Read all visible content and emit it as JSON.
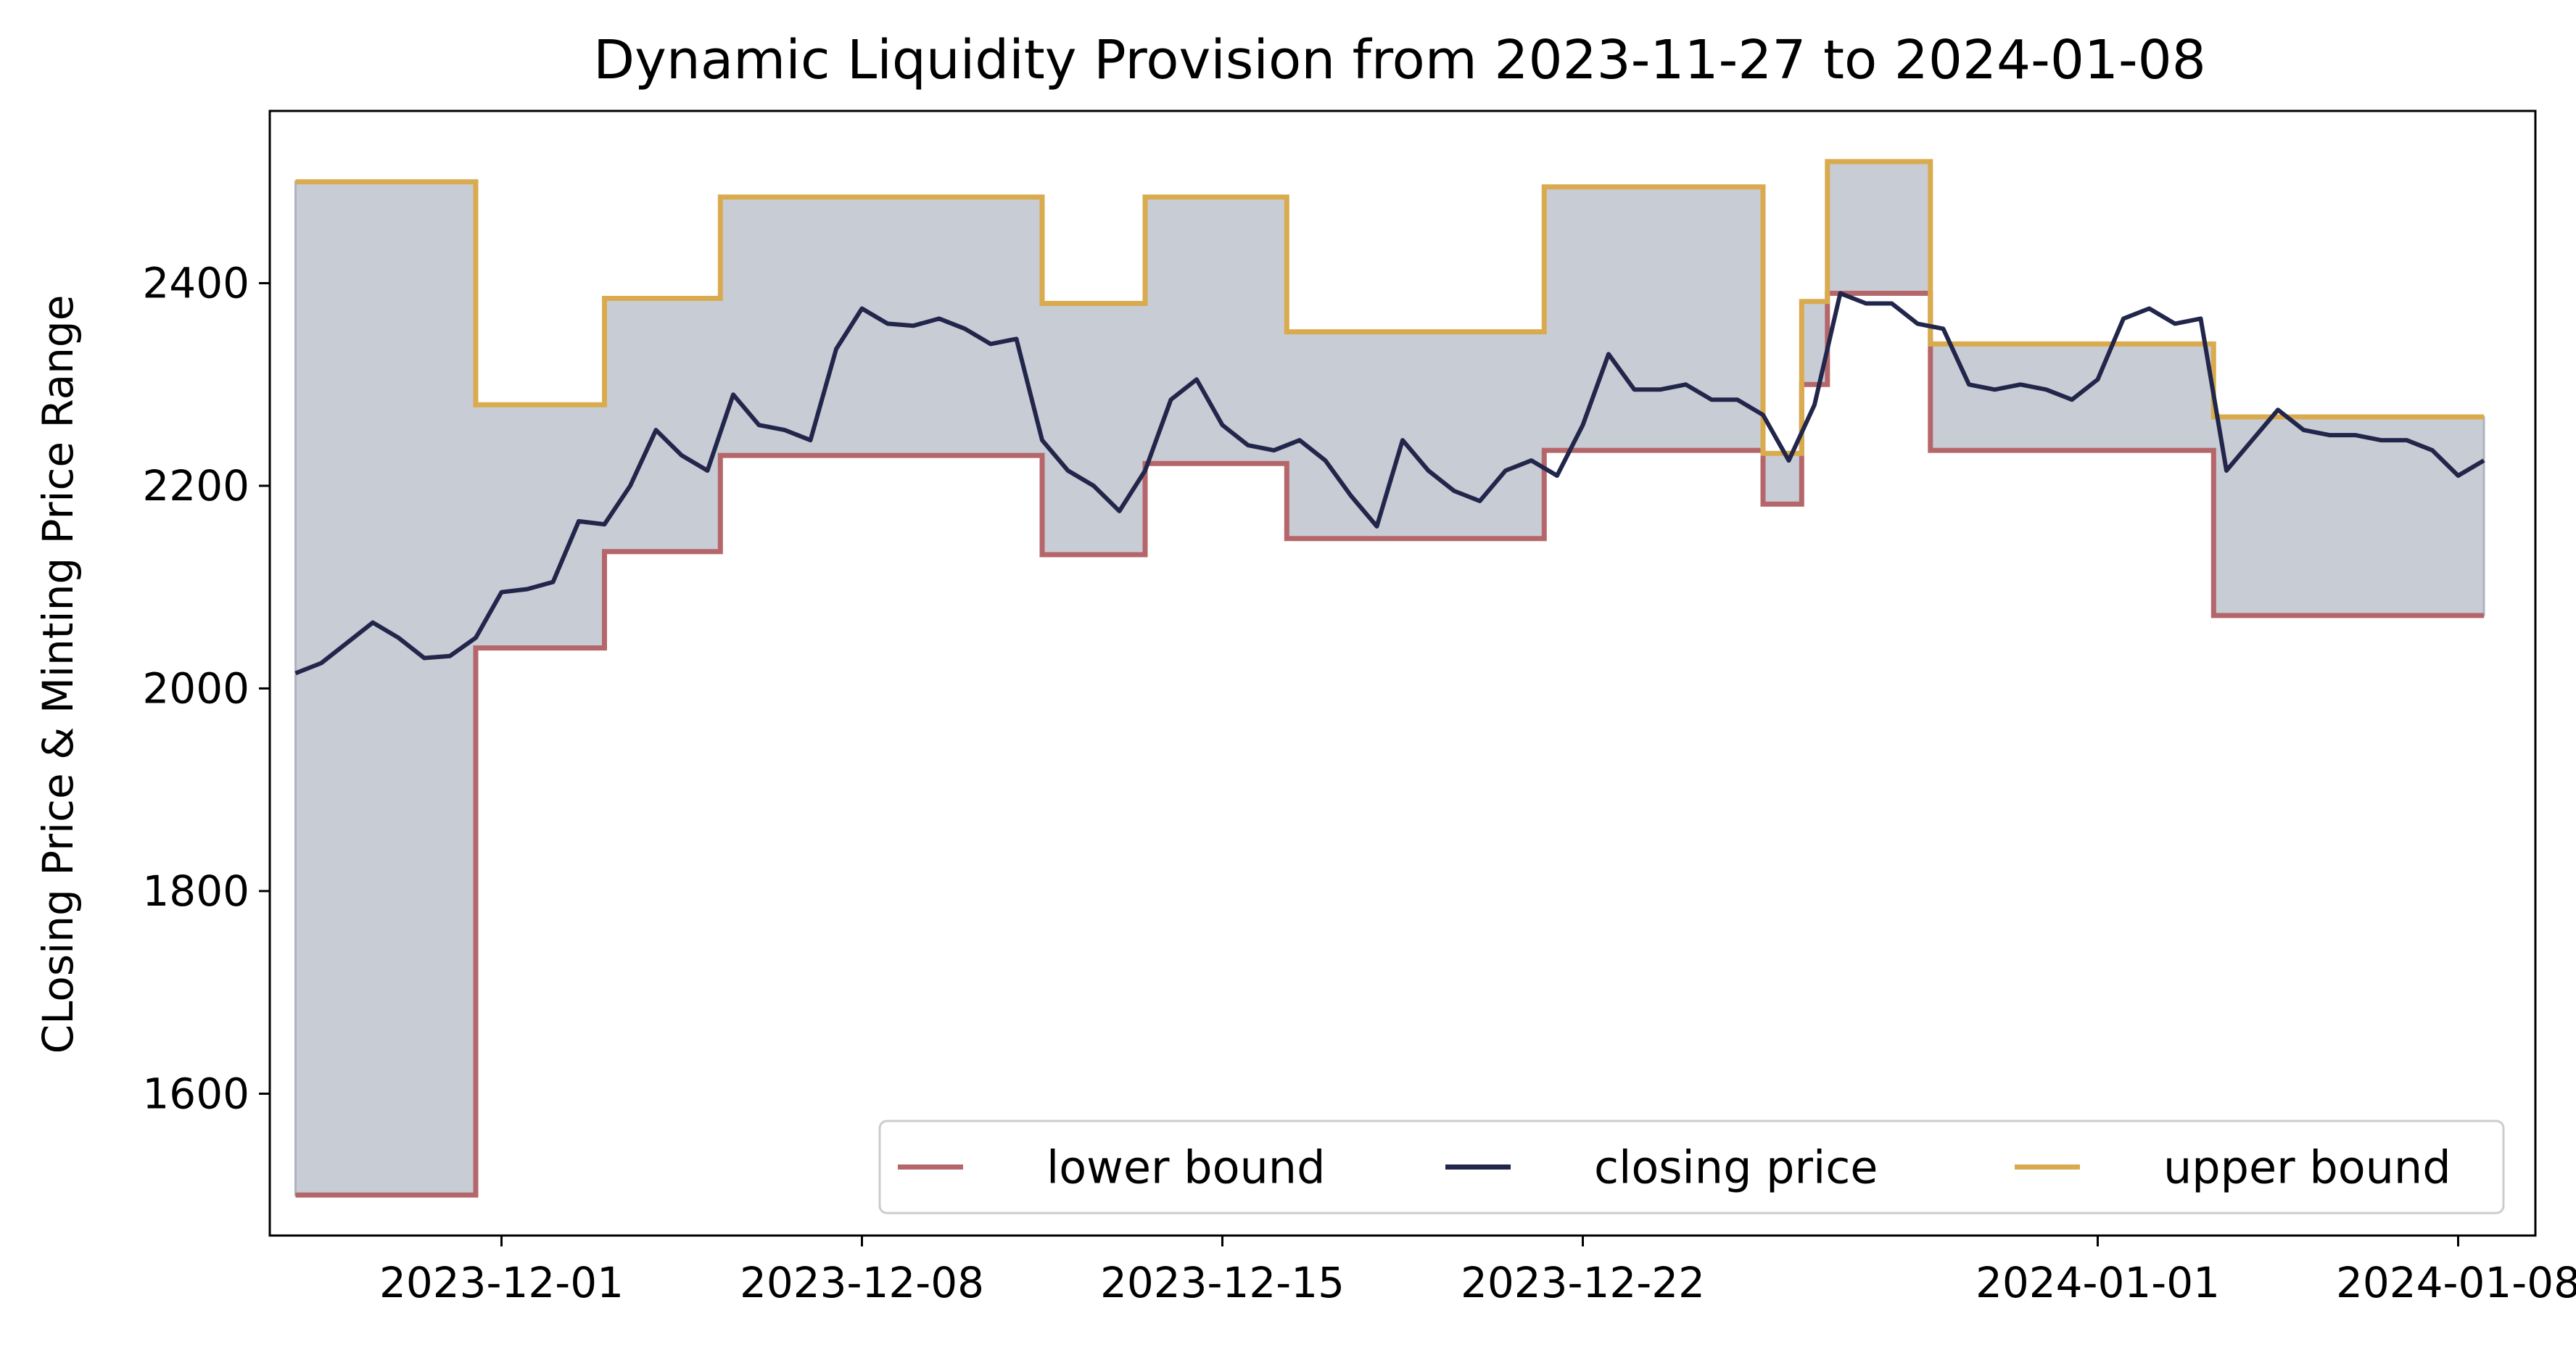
{
  "chart_data": {
    "type": "line",
    "title": "Dynamic Liquidity Provision from 2023-11-27 to 2024-01-08",
    "xlabel": "",
    "ylabel": "CLosing Price & Minting Price Range",
    "x_type": "date",
    "xlim": [
      "2023-11-26T12:00",
      "2024-01-09T12:00"
    ],
    "ylim": [
      1460,
      2570
    ],
    "x_ticks": [
      "2023-12-01",
      "2023-12-08",
      "2023-12-15",
      "2023-12-22",
      "2024-01-01",
      "2024-01-08"
    ],
    "y_ticks": [
      1600,
      1800,
      2000,
      2200,
      2400
    ],
    "grid": false,
    "legend": {
      "placement": "lower-right",
      "columns": 3
    },
    "colors": {
      "lower_bound": "#b5666a",
      "closing_price": "#22264a",
      "upper_bound": "#d9ab4e",
      "range_fill": "#c8ccd5"
    },
    "series": [
      {
        "name": "lower bound",
        "step": true,
        "x": [
          "2023-11-27T00:00",
          "2023-11-30T12:00",
          "2023-12-03T00:00",
          "2023-12-05T06:00",
          "2023-12-11T12:00",
          "2023-12-13T12:00",
          "2023-12-16T06:00",
          "2023-12-21T06:00",
          "2023-12-25T12:00",
          "2023-12-26T06:00",
          "2023-12-26T18:00",
          "2023-12-27T12:00",
          "2023-12-28T18:00",
          "2024-01-03T06:00",
          "2024-01-08T12:00"
        ],
        "values": [
          1500,
          2040,
          2135,
          2230,
          2132,
          2222,
          2148,
          2235,
          2182,
          2300,
          2390,
          2390,
          2235,
          2072,
          2072
        ]
      },
      {
        "name": "closing price",
        "x": [
          "2023-11-27T00:00",
          "2023-11-27T12:00",
          "2023-11-28T00:00",
          "2023-11-28T12:00",
          "2023-11-29T00:00",
          "2023-11-29T12:00",
          "2023-11-30T00:00",
          "2023-11-30T12:00",
          "2023-12-01T00:00",
          "2023-12-01T12:00",
          "2023-12-02T00:00",
          "2023-12-02T12:00",
          "2023-12-03T00:00",
          "2023-12-03T12:00",
          "2023-12-04T00:00",
          "2023-12-04T12:00",
          "2023-12-05T00:00",
          "2023-12-05T12:00",
          "2023-12-06T00:00",
          "2023-12-06T12:00",
          "2023-12-07T00:00",
          "2023-12-07T12:00",
          "2023-12-08T00:00",
          "2023-12-08T12:00",
          "2023-12-09T00:00",
          "2023-12-09T12:00",
          "2023-12-10T00:00",
          "2023-12-10T12:00",
          "2023-12-11T00:00",
          "2023-12-11T12:00",
          "2023-12-12T00:00",
          "2023-12-12T12:00",
          "2023-12-13T00:00",
          "2023-12-13T12:00",
          "2023-12-14T00:00",
          "2023-12-14T12:00",
          "2023-12-15T00:00",
          "2023-12-15T12:00",
          "2023-12-16T00:00",
          "2023-12-16T12:00",
          "2023-12-17T00:00",
          "2023-12-17T12:00",
          "2023-12-18T00:00",
          "2023-12-18T12:00",
          "2023-12-19T00:00",
          "2023-12-19T12:00",
          "2023-12-20T00:00",
          "2023-12-20T12:00",
          "2023-12-21T00:00",
          "2023-12-21T12:00",
          "2023-12-22T00:00",
          "2023-12-22T12:00",
          "2023-12-23T00:00",
          "2023-12-23T12:00",
          "2023-12-24T00:00",
          "2023-12-24T12:00",
          "2023-12-25T00:00",
          "2023-12-25T12:00",
          "2023-12-26T00:00",
          "2023-12-26T12:00",
          "2023-12-27T00:00",
          "2023-12-27T12:00",
          "2023-12-28T00:00",
          "2023-12-28T12:00",
          "2023-12-29T00:00",
          "2023-12-29T12:00",
          "2023-12-30T00:00",
          "2023-12-30T12:00",
          "2023-12-31T00:00",
          "2023-12-31T12:00",
          "2024-01-01T00:00",
          "2024-01-01T12:00",
          "2024-01-02T00:00",
          "2024-01-02T12:00",
          "2024-01-03T00:00",
          "2024-01-03T12:00",
          "2024-01-04T00:00",
          "2024-01-04T12:00",
          "2024-01-05T00:00",
          "2024-01-05T12:00",
          "2024-01-06T00:00",
          "2024-01-06T12:00",
          "2024-01-07T00:00",
          "2024-01-07T12:00",
          "2024-01-08T00:00",
          "2024-01-08T12:00"
        ],
        "values": [
          2015,
          2025,
          2045,
          2065,
          2050,
          2030,
          2032,
          2050,
          2095,
          2098,
          2105,
          2165,
          2162,
          2200,
          2255,
          2230,
          2215,
          2290,
          2260,
          2255,
          2245,
          2335,
          2375,
          2360,
          2358,
          2365,
          2355,
          2340,
          2345,
          2245,
          2215,
          2200,
          2175,
          2215,
          2285,
          2305,
          2260,
          2240,
          2235,
          2245,
          2225,
          2190,
          2160,
          2245,
          2215,
          2195,
          2185,
          2215,
          2225,
          2210,
          2260,
          2330,
          2295,
          2295,
          2300,
          2285,
          2285,
          2270,
          2225,
          2280,
          2390,
          2380,
          2380,
          2360,
          2355,
          2300,
          2295,
          2300,
          2295,
          2285,
          2305,
          2365,
          2375,
          2360,
          2365,
          2215,
          2245,
          2275,
          2255,
          2250,
          2250,
          2245,
          2245,
          2235,
          2210,
          2225
        ]
      },
      {
        "name": "upper bound",
        "step": true,
        "x": [
          "2023-11-27T00:00",
          "2023-11-30T12:00",
          "2023-12-03T00:00",
          "2023-12-05T06:00",
          "2023-12-11T12:00",
          "2023-12-13T12:00",
          "2023-12-16T06:00",
          "2023-12-21T06:00",
          "2023-12-25T12:00",
          "2023-12-26T06:00",
          "2023-12-26T18:00",
          "2023-12-27T12:00",
          "2023-12-28T18:00",
          "2024-01-03T06:00",
          "2024-01-08T12:00"
        ],
        "values": [
          2500,
          2280,
          2385,
          2485,
          2380,
          2485,
          2352,
          2495,
          2232,
          2382,
          2520,
          2520,
          2340,
          2268,
          2268
        ]
      }
    ]
  }
}
